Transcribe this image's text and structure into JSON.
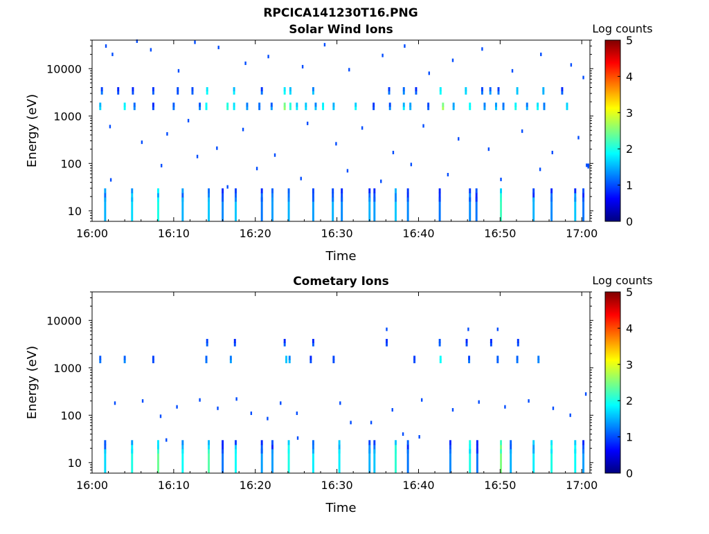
{
  "figure_title": "RPCICA141230T16.PNG",
  "colors": {
    "frame": "#000000",
    "background": "#ffffff",
    "colormap": [
      "#00007f",
      "#0000ff",
      "#007fff",
      "#00ffff",
      "#7fff7f",
      "#ffff00",
      "#ff7f00",
      "#ff0000",
      "#7f0000"
    ]
  },
  "chart_data": [
    {
      "type": "heatmap",
      "title": "Solar Wind Ions",
      "xlabel": "Time",
      "ylabel": "Energy (eV)",
      "colorbar_label": "Log counts",
      "x_ticks": [
        "16:00",
        "16:10",
        "16:20",
        "16:30",
        "16:40",
        "16:50",
        "17:00"
      ],
      "y_ticks": [
        "10",
        "100",
        "1000",
        "10000"
      ],
      "y_scale": "log",
      "ylim": [
        6,
        40000
      ],
      "xlim_minutes": [
        0,
        61
      ],
      "clim": [
        0,
        5
      ],
      "colorbar_ticks": [
        "0",
        "1",
        "2",
        "3",
        "4",
        "5"
      ],
      "grid": false,
      "bands": [
        {
          "e": 1600,
          "cells": [
            [
              1,
              1.7
            ],
            [
              4,
              1.9
            ],
            [
              5.2,
              1.3
            ],
            [
              7.5,
              1.0
            ],
            [
              10,
              1.2
            ],
            [
              13.2,
              1.3
            ],
            [
              14,
              1.9
            ],
            [
              16.6,
              2.1
            ],
            [
              17.4,
              1.8
            ],
            [
              19,
              1.4
            ],
            [
              20.5,
              1.2
            ],
            [
              22,
              1.4
            ],
            [
              23.6,
              2.6
            ],
            [
              24.3,
              2.1
            ],
            [
              25.1,
              1.8
            ],
            [
              26.2,
              1.7
            ],
            [
              27.4,
              1.6
            ],
            [
              28.3,
              1.9
            ],
            [
              29.6,
              1.6
            ],
            [
              32.3,
              1.9
            ],
            [
              34.5,
              1.0
            ],
            [
              36.5,
              1.3
            ],
            [
              38.2,
              1.8
            ],
            [
              39,
              1.5
            ],
            [
              41.2,
              1.1
            ],
            [
              43,
              2.7
            ],
            [
              44.3,
              1.5
            ],
            [
              46.3,
              1.9
            ],
            [
              48.1,
              1.4
            ],
            [
              49.5,
              1.6
            ],
            [
              50.4,
              1.3
            ],
            [
              51.9,
              2.0
            ],
            [
              53.3,
              1.5
            ],
            [
              54.6,
              1.9
            ],
            [
              55.4,
              1.3
            ],
            [
              58.2,
              1.7
            ]
          ]
        },
        {
          "e": 3400,
          "cells": [
            [
              1.2,
              1.2
            ],
            [
              3.2,
              1.0
            ],
            [
              5,
              1.0
            ],
            [
              7.5,
              1.1
            ],
            [
              10.5,
              1.0
            ],
            [
              12.3,
              1.1
            ],
            [
              14.1,
              1.9
            ],
            [
              17.4,
              1.8
            ],
            [
              20.8,
              1.2
            ],
            [
              23.6,
              1.9
            ],
            [
              24.3,
              1.7
            ],
            [
              27.1,
              1.6
            ],
            [
              36.4,
              1.2
            ],
            [
              38.2,
              1.3
            ],
            [
              39.7,
              1.1
            ],
            [
              42.7,
              1.9
            ],
            [
              45.8,
              1.7
            ],
            [
              47.8,
              1.2
            ],
            [
              48.8,
              1.4
            ],
            [
              49.8,
              1.2
            ],
            [
              52.1,
              1.6
            ],
            [
              55.3,
              1.5
            ],
            [
              57.6,
              1.1
            ]
          ]
        },
        {
          "e": 10,
          "cells": [
            [
              1.6,
              1.5
            ],
            [
              4.9,
              1.7
            ],
            [
              8.1,
              2.0
            ],
            [
              11.1,
              1.5
            ],
            [
              14.3,
              1.6
            ],
            [
              16,
              1.3
            ],
            [
              17.6,
              1.6
            ],
            [
              20.8,
              1.2
            ],
            [
              22.1,
              1.4
            ],
            [
              24.1,
              1.5
            ],
            [
              27.1,
              1.4
            ],
            [
              29.5,
              1.5
            ],
            [
              30.6,
              1.3
            ],
            [
              34,
              1.5
            ],
            [
              34.6,
              1.4
            ],
            [
              37.2,
              1.6
            ],
            [
              38.7,
              1.3
            ],
            [
              42.6,
              1.2
            ],
            [
              46.3,
              1.3
            ],
            [
              47.1,
              1.2
            ],
            [
              50.1,
              2.2
            ],
            [
              54.1,
              1.5
            ],
            [
              56.3,
              1.3
            ],
            [
              59.2,
              1.6
            ],
            [
              60.2,
              1.2
            ]
          ]
        }
      ],
      "points": [
        [
          1.7,
          30000,
          1.0
        ],
        [
          2.5,
          20000,
          1.0
        ],
        [
          5.5,
          38000,
          1.0
        ],
        [
          7.2,
          25000,
          1.0
        ],
        [
          10.6,
          9000,
          1.0
        ],
        [
          12.6,
          36000,
          1.0
        ],
        [
          15.5,
          28000,
          1.0
        ],
        [
          18.8,
          13000,
          1.0
        ],
        [
          21.6,
          18000,
          1.0
        ],
        [
          25.8,
          11000,
          1.0
        ],
        [
          28.5,
          32000,
          1.0
        ],
        [
          31.5,
          9500,
          1.0
        ],
        [
          35.6,
          19000,
          1.0
        ],
        [
          38.3,
          30000,
          1.0
        ],
        [
          41.3,
          8000,
          1.0
        ],
        [
          44.2,
          15000,
          1.0
        ],
        [
          47.8,
          26000,
          1.0
        ],
        [
          51.5,
          9000,
          1.0
        ],
        [
          55,
          20000,
          1.0
        ],
        [
          58.7,
          12000,
          1.0
        ],
        [
          60.2,
          6500,
          1.0
        ],
        [
          2.2,
          600,
          1.0
        ],
        [
          6.1,
          280,
          1.0
        ],
        [
          9.2,
          420,
          1.0
        ],
        [
          11.8,
          800,
          1.0
        ],
        [
          15.3,
          210,
          1.0
        ],
        [
          18.5,
          520,
          1.0
        ],
        [
          22.4,
          150,
          1.0
        ],
        [
          26.4,
          700,
          1.0
        ],
        [
          29.9,
          260,
          1.0
        ],
        [
          33.1,
          560,
          1.0
        ],
        [
          36.9,
          170,
          1.0
        ],
        [
          40.6,
          620,
          1.0
        ],
        [
          44.9,
          330,
          1.0
        ],
        [
          48.6,
          200,
          1.0
        ],
        [
          52.7,
          480,
          1.0
        ],
        [
          56.4,
          170,
          1.0
        ],
        [
          59.6,
          350,
          1.0
        ],
        [
          2.3,
          45,
          1.0
        ],
        [
          8.5,
          90,
          1.0
        ],
        [
          12.9,
          140,
          1.0
        ],
        [
          16.6,
          32,
          1.0
        ],
        [
          20.2,
          78,
          1.0
        ],
        [
          25.6,
          48,
          1.0
        ],
        [
          31.3,
          70,
          1.0
        ],
        [
          35.4,
          42,
          1.0
        ],
        [
          39.1,
          95,
          1.0
        ],
        [
          43.6,
          58,
          1.0
        ],
        [
          50.1,
          46,
          1.0
        ],
        [
          54.9,
          75,
          1.0
        ],
        [
          60.8,
          85,
          1.0
        ]
      ],
      "solid_tail": true
    },
    {
      "type": "heatmap",
      "title": "Cometary Ions",
      "xlabel": "Time",
      "ylabel": "Energy (eV)",
      "colorbar_label": "Log counts",
      "x_ticks": [
        "16:00",
        "16:10",
        "16:20",
        "16:30",
        "16:40",
        "16:50",
        "17:00"
      ],
      "y_ticks": [
        "10",
        "100",
        "1000",
        "10000"
      ],
      "y_scale": "log",
      "ylim": [
        6,
        40000
      ],
      "xlim_minutes": [
        0,
        61
      ],
      "clim": [
        0,
        5
      ],
      "colorbar_ticks": [
        "0",
        "1",
        "2",
        "3",
        "4",
        "5"
      ],
      "grid": false,
      "bands": [
        {
          "e": 1500,
          "cells": [
            [
              1,
              1.2
            ],
            [
              4,
              1.3
            ],
            [
              7.5,
              1.0
            ],
            [
              14,
              1.2
            ],
            [
              17,
              1.4
            ],
            [
              23.8,
              1.6
            ],
            [
              24.2,
              1.5
            ],
            [
              26.8,
              1.0
            ],
            [
              29.6,
              1.0
            ],
            [
              39.5,
              1.0
            ],
            [
              42.7,
              1.9
            ],
            [
              46.2,
              1.2
            ],
            [
              49.7,
              1.1
            ],
            [
              52.1,
              1.2
            ],
            [
              54.7,
              1.3
            ]
          ]
        },
        {
          "e": 3400,
          "cells": [
            [
              14.1,
              1.1
            ],
            [
              17.5,
              1.0
            ],
            [
              23.6,
              1.1
            ],
            [
              27.1,
              1.1
            ],
            [
              36.1,
              1.0
            ],
            [
              42.6,
              1.1
            ],
            [
              45.9,
              1.0
            ],
            [
              48.9,
              1.0
            ],
            [
              52.2,
              1.0
            ]
          ]
        },
        {
          "e": 10,
          "cells": [
            [
              1.6,
              1.7
            ],
            [
              4.9,
              2.0
            ],
            [
              8.1,
              2.4
            ],
            [
              11.1,
              1.9
            ],
            [
              14.3,
              2.3
            ],
            [
              16,
              1.2
            ],
            [
              17.6,
              1.9
            ],
            [
              20.8,
              1.4
            ],
            [
              22.1,
              1.4
            ],
            [
              24.1,
              2.0
            ],
            [
              27.1,
              1.8
            ],
            [
              30.3,
              1.8
            ],
            [
              34,
              1.5
            ],
            [
              34.6,
              1.6
            ],
            [
              37.2,
              2.1
            ],
            [
              38.7,
              1.2
            ],
            [
              43.9,
              1.3
            ],
            [
              46.3,
              2.0
            ],
            [
              47.2,
              1.2
            ],
            [
              50.1,
              2.5
            ],
            [
              51.3,
              1.5
            ],
            [
              54.1,
              1.8
            ],
            [
              56.3,
              2.0
            ],
            [
              59.2,
              1.9
            ],
            [
              60.2,
              1.4
            ]
          ]
        }
      ],
      "points": [
        [
          2.8,
          180,
          1.0
        ],
        [
          6.2,
          200,
          1.0
        ],
        [
          8.4,
          95,
          1.0
        ],
        [
          10.4,
          150,
          1.0
        ],
        [
          13.2,
          210,
          1.0
        ],
        [
          15.4,
          140,
          1.0
        ],
        [
          17.7,
          220,
          1.0
        ],
        [
          19.5,
          110,
          1.0
        ],
        [
          21.5,
          85,
          1.0
        ],
        [
          23.1,
          180,
          1.0
        ],
        [
          25.1,
          110,
          1.0
        ],
        [
          30.4,
          180,
          1.0
        ],
        [
          31.7,
          70,
          1.0
        ],
        [
          34.2,
          70,
          1.0
        ],
        [
          36.8,
          130,
          1.0
        ],
        [
          38.1,
          40,
          1.0
        ],
        [
          40.4,
          210,
          1.0
        ],
        [
          44.2,
          130,
          1.0
        ],
        [
          47.4,
          190,
          1.0
        ],
        [
          50.6,
          150,
          1.0
        ],
        [
          53.5,
          200,
          1.0
        ],
        [
          56.5,
          140,
          1.0
        ],
        [
          58.6,
          100,
          1.0
        ],
        [
          60.5,
          280,
          1.0
        ],
        [
          36.1,
          6500,
          1.0
        ],
        [
          46.1,
          6500,
          1.0
        ],
        [
          49.7,
          6500,
          1.0
        ],
        [
          9.1,
          30,
          1.0
        ],
        [
          25.2,
          33,
          1.0
        ],
        [
          40.1,
          35,
          1.0
        ]
      ],
      "solid_tail": false
    }
  ]
}
